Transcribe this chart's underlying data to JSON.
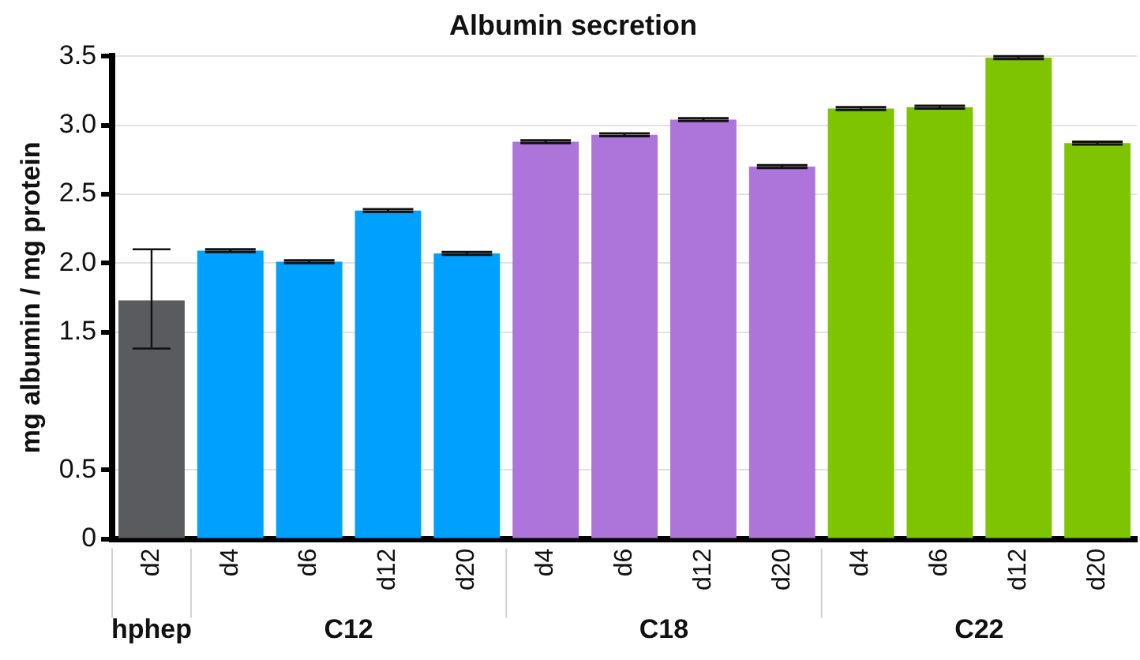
{
  "chart_data": {
    "type": "bar",
    "title": "Albumin secretion",
    "ylabel": "mg albumin / mg protein",
    "categories": [
      "d2",
      "d4",
      "d6",
      "d12",
      "d20",
      "d4",
      "d6",
      "d12",
      "d20",
      "d4",
      "d6",
      "d12",
      "d20"
    ],
    "series": [
      {
        "name": "hphep",
        "color": "#5a5b5f",
        "values": [
          1.73,
          null,
          null,
          null,
          null,
          null,
          null,
          null,
          null,
          null,
          null,
          null,
          null
        ],
        "errors": [
          [
            1.38,
            2.1
          ],
          null,
          null,
          null,
          null,
          null,
          null,
          null,
          null,
          null,
          null,
          null,
          null
        ]
      },
      {
        "name": "C12",
        "color": "#00a0ff",
        "values": [
          null,
          2.09,
          2.01,
          2.38,
          2.07,
          null,
          null,
          null,
          null,
          null,
          null,
          null,
          null
        ],
        "errors": [
          null,
          0.01,
          0.01,
          0.01,
          0.01,
          null,
          null,
          null,
          null,
          null,
          null,
          null,
          null
        ]
      },
      {
        "name": "C18",
        "color": "#ad75d9",
        "values": [
          null,
          null,
          null,
          null,
          null,
          2.88,
          2.93,
          3.04,
          2.7,
          null,
          null,
          null,
          null
        ],
        "errors": [
          null,
          null,
          null,
          null,
          null,
          0.01,
          0.01,
          0.01,
          0.01,
          null,
          null,
          null,
          null
        ]
      },
      {
        "name": "C22",
        "color": "#7ec400",
        "values": [
          null,
          null,
          null,
          null,
          null,
          null,
          null,
          null,
          null,
          3.12,
          3.13,
          3.49,
          2.87
        ],
        "errors": [
          null,
          null,
          null,
          null,
          null,
          null,
          null,
          null,
          null,
          0.01,
          0.01,
          0.01,
          0.01
        ]
      }
    ],
    "ylim": [
      0,
      3.5
    ],
    "yticks": [
      0,
      0.5,
      1.5,
      {
        "value": 2,
        "label": "2.0"
      },
      2.5,
      {
        "value": 3,
        "label": "3.0"
      },
      3.5
    ],
    "grid": "y",
    "legend": false
  }
}
